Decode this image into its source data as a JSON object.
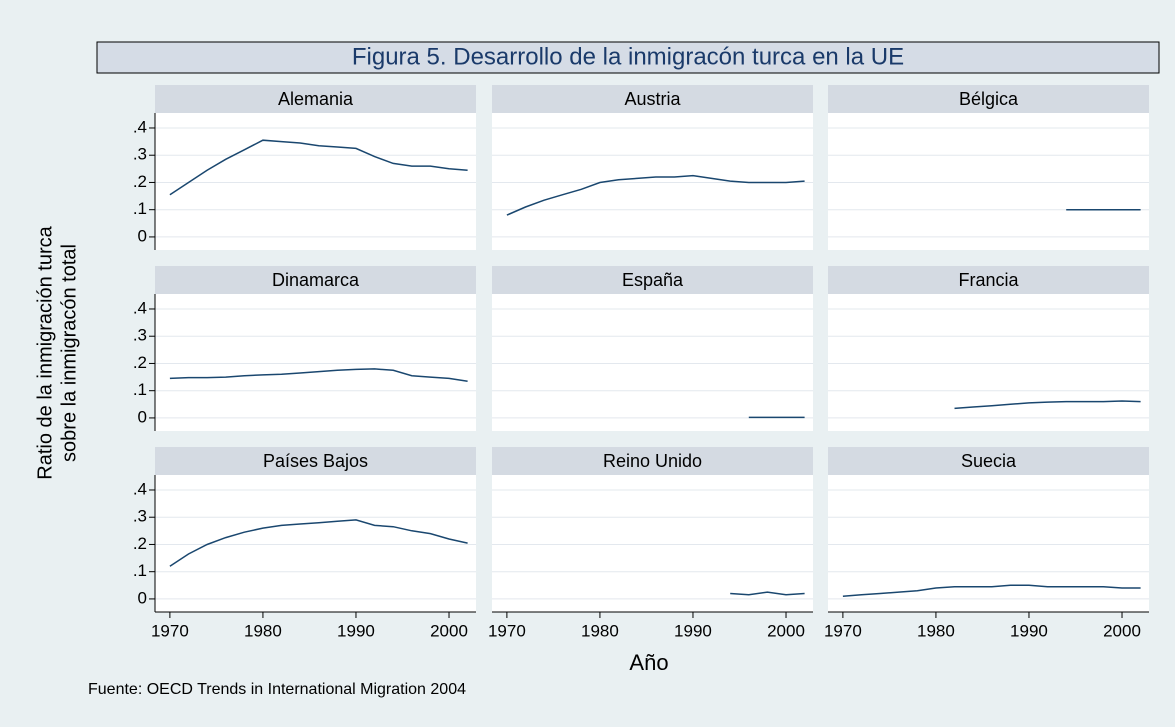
{
  "chart_data": {
    "type": "line",
    "title": "Figura 5. Desarrollo de la inmigracón turca en la UE",
    "ylabel": [
      "Ratio de la inmigración turca",
      "sobre la inmigracón total"
    ],
    "xlabel": "Año",
    "source": "Fuente: OECD Trends in International Migration 2004",
    "color": "#1a476f",
    "grid": true,
    "xlim": [
      1968.4,
      2002.9
    ],
    "xticks": [
      1970,
      1980,
      1990,
      2000
    ],
    "ylim": [
      -0.048,
      0.455
    ],
    "yticks": [
      0,
      {
        "value": 0.1,
        "label": ".1"
      },
      {
        "value": 0.2,
        "label": ".2"
      },
      {
        "value": 0.3,
        "label": ".3"
      },
      {
        "value": 0.4,
        "label": ".4"
      }
    ],
    "x": [
      1970,
      1972,
      1974,
      1976,
      1978,
      1980,
      1982,
      1984,
      1986,
      1988,
      1990,
      1992,
      1994,
      1996,
      1998,
      2000,
      2002
    ],
    "panels": [
      {
        "name": "Alemania",
        "values": [
          0.155,
          0.2,
          0.245,
          0.285,
          0.32,
          0.355,
          0.35,
          0.345,
          0.335,
          0.33,
          0.325,
          0.295,
          0.27,
          0.26,
          0.26,
          0.25,
          0.245
        ]
      },
      {
        "name": "Austria",
        "values": [
          0.08,
          0.11,
          0.135,
          0.155,
          0.175,
          0.2,
          0.21,
          0.215,
          0.22,
          0.22,
          0.225,
          0.215,
          0.205,
          0.2,
          0.2,
          0.2,
          0.205
        ]
      },
      {
        "name": "Bélgica",
        "values": [
          null,
          null,
          null,
          null,
          null,
          null,
          null,
          null,
          null,
          null,
          null,
          null,
          0.1,
          0.1,
          0.1,
          0.1,
          0.1
        ]
      },
      {
        "name": "Dinamarca",
        "values": [
          0.145,
          0.148,
          0.148,
          0.15,
          0.155,
          0.158,
          0.16,
          0.165,
          0.17,
          0.175,
          0.178,
          0.18,
          0.175,
          0.155,
          0.15,
          0.145,
          0.135
        ]
      },
      {
        "name": "España",
        "values": [
          null,
          null,
          null,
          null,
          null,
          null,
          null,
          null,
          null,
          null,
          null,
          null,
          null,
          0.002,
          0.002,
          0.002,
          0.002
        ]
      },
      {
        "name": "Francia",
        "values": [
          null,
          null,
          null,
          null,
          null,
          null,
          0.035,
          0.04,
          0.045,
          0.05,
          0.055,
          0.058,
          0.06,
          0.06,
          0.06,
          0.062,
          0.06
        ]
      },
      {
        "name": "Países Bajos",
        "values": [
          0.12,
          0.165,
          0.2,
          0.225,
          0.245,
          0.26,
          0.27,
          0.275,
          0.28,
          0.285,
          0.29,
          0.27,
          0.265,
          0.25,
          0.24,
          0.22,
          0.205
        ]
      },
      {
        "name": "Reino Unido",
        "values": [
          null,
          null,
          null,
          null,
          null,
          null,
          null,
          null,
          null,
          null,
          null,
          null,
          0.02,
          0.015,
          0.025,
          0.015,
          0.02
        ]
      },
      {
        "name": "Suecia",
        "values": [
          0.01,
          0.015,
          0.02,
          0.025,
          0.03,
          0.04,
          0.045,
          0.045,
          0.045,
          0.05,
          0.05,
          0.045,
          0.045,
          0.045,
          0.045,
          0.04,
          0.04
        ]
      }
    ]
  }
}
